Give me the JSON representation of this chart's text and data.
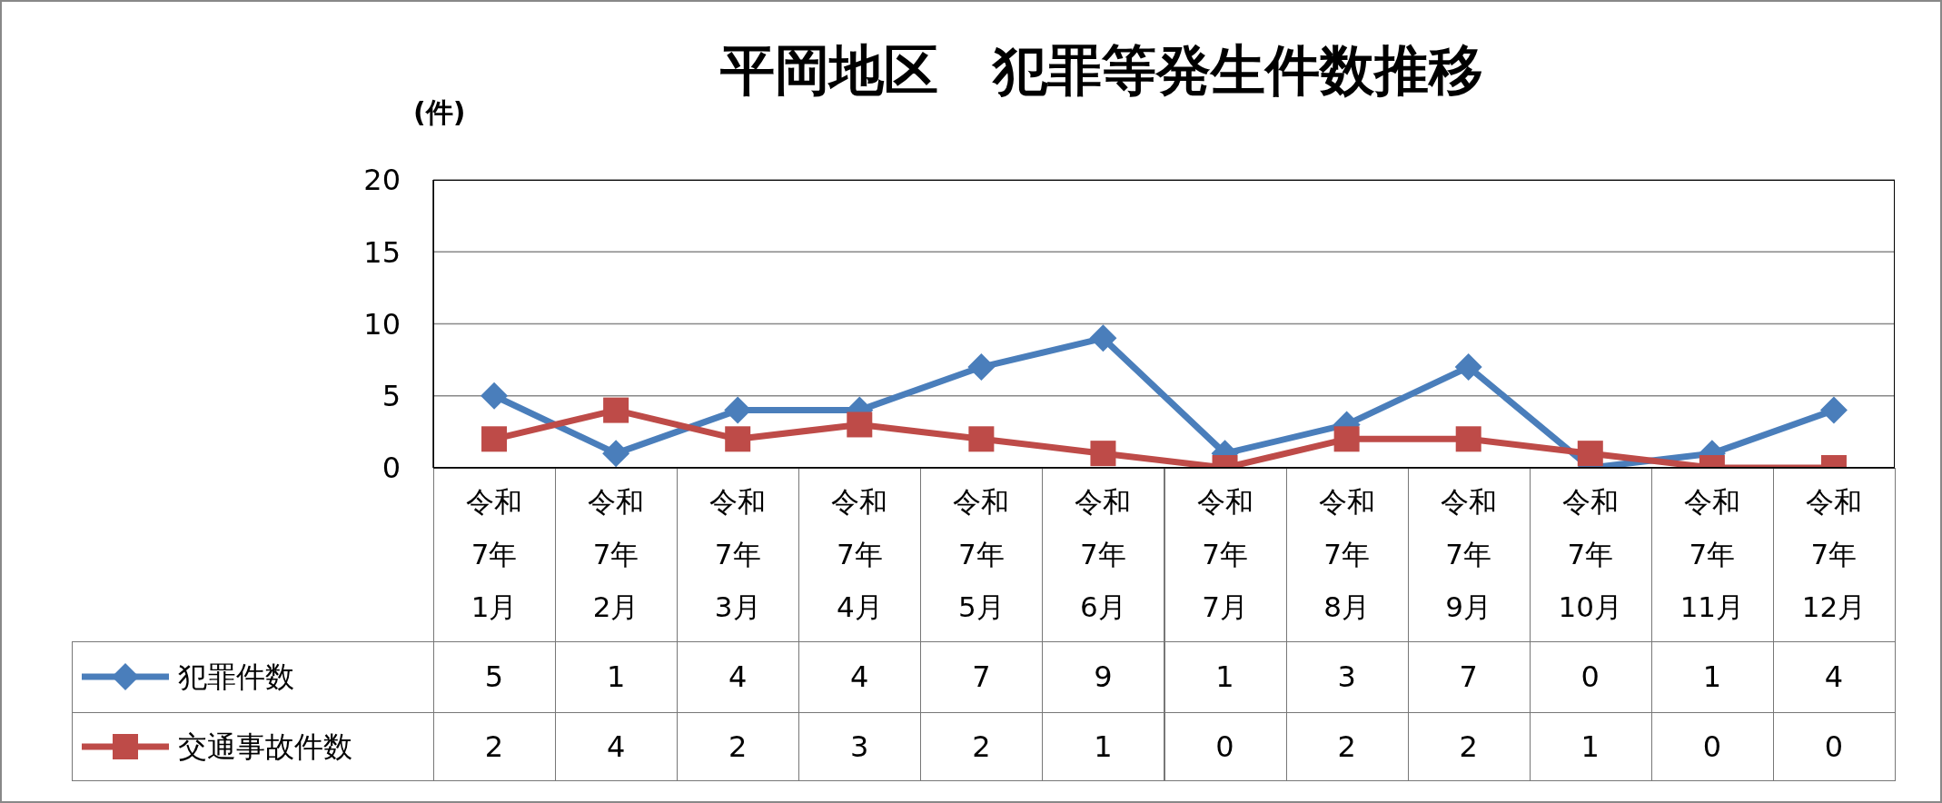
{
  "chart_data": {
    "type": "line",
    "title": "平岡地区　犯罪等発生件数推移",
    "ylabel": "(件)",
    "categories": [
      "令和7年1月",
      "令和7年2月",
      "令和7年3月",
      "令和7年4月",
      "令和7年5月",
      "令和7年6月",
      "令和7年7月",
      "令和7年8月",
      "令和7年9月",
      "令和7年10月",
      "令和7年11月",
      "令和7年12月"
    ],
    "series": [
      {
        "name": "犯罪件数",
        "color": "#4a7ebb",
        "marker": "diamond",
        "values": [
          5,
          1,
          4,
          4,
          7,
          9,
          1,
          3,
          7,
          0,
          1,
          4
        ]
      },
      {
        "name": "交通事故件数",
        "color": "#be4b48",
        "marker": "square",
        "values": [
          2,
          4,
          2,
          3,
          2,
          1,
          0,
          2,
          2,
          1,
          0,
          0
        ]
      }
    ],
    "ylim": [
      0,
      20
    ],
    "yticks": [
      0,
      5,
      10,
      15,
      20
    ],
    "grid": "y",
    "legend": "bottom",
    "data_labels": true,
    "line_style": "solid"
  }
}
